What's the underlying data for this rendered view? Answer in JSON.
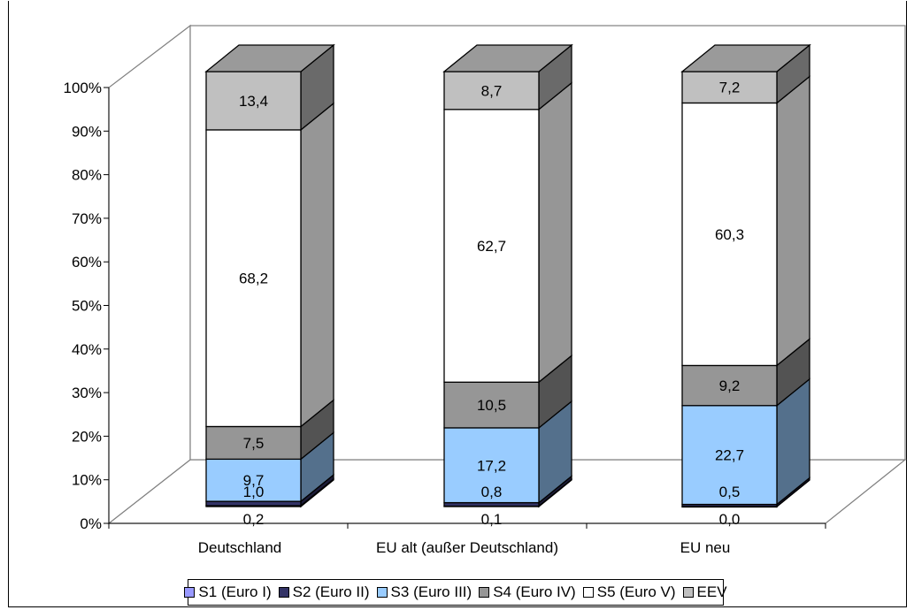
{
  "chart_data": {
    "type": "bar",
    "stacked": true,
    "percent_stacked": true,
    "three_d": true,
    "categories": [
      "Deutschland",
      "EU alt (außer Deutschland)",
      "EU neu"
    ],
    "series": [
      {
        "name": "S1 (Euro I)",
        "color": "#9999ff",
        "values": [
          0.2,
          0.1,
          0.0
        ],
        "labels": [
          "0,2",
          "0,1",
          "0,0"
        ]
      },
      {
        "name": "S2 (Euro II)",
        "color": "#333366",
        "values": [
          1.0,
          0.8,
          0.5
        ],
        "labels": [
          "1,0",
          "0,8",
          "0,5"
        ]
      },
      {
        "name": "S3 (Euro III)",
        "color": "#99ccff",
        "values": [
          9.7,
          17.2,
          22.7
        ],
        "labels": [
          "9,7",
          "17,2",
          "22,7"
        ]
      },
      {
        "name": "S4 (Euro IV)",
        "color": "#969696",
        "values": [
          7.5,
          10.5,
          9.2
        ],
        "labels": [
          "7,5",
          "10,5",
          "9,2"
        ]
      },
      {
        "name": "S5 (Euro V)",
        "color": "#ffffff",
        "values": [
          68.2,
          62.7,
          60.3
        ],
        "labels": [
          "68,2",
          "62,7",
          "60,3"
        ]
      },
      {
        "name": "EEV",
        "color": "#c0c0c0",
        "values": [
          13.4,
          8.7,
          7.2
        ],
        "labels": [
          "13,4",
          "8,7",
          "7,2"
        ]
      }
    ],
    "y_ticks": [
      "0%",
      "10%",
      "20%",
      "30%",
      "40%",
      "50%",
      "60%",
      "70%",
      "80%",
      "90%",
      "100%"
    ],
    "ylim": [
      0,
      100
    ],
    "grid": false,
    "legend_position": "bottom"
  }
}
